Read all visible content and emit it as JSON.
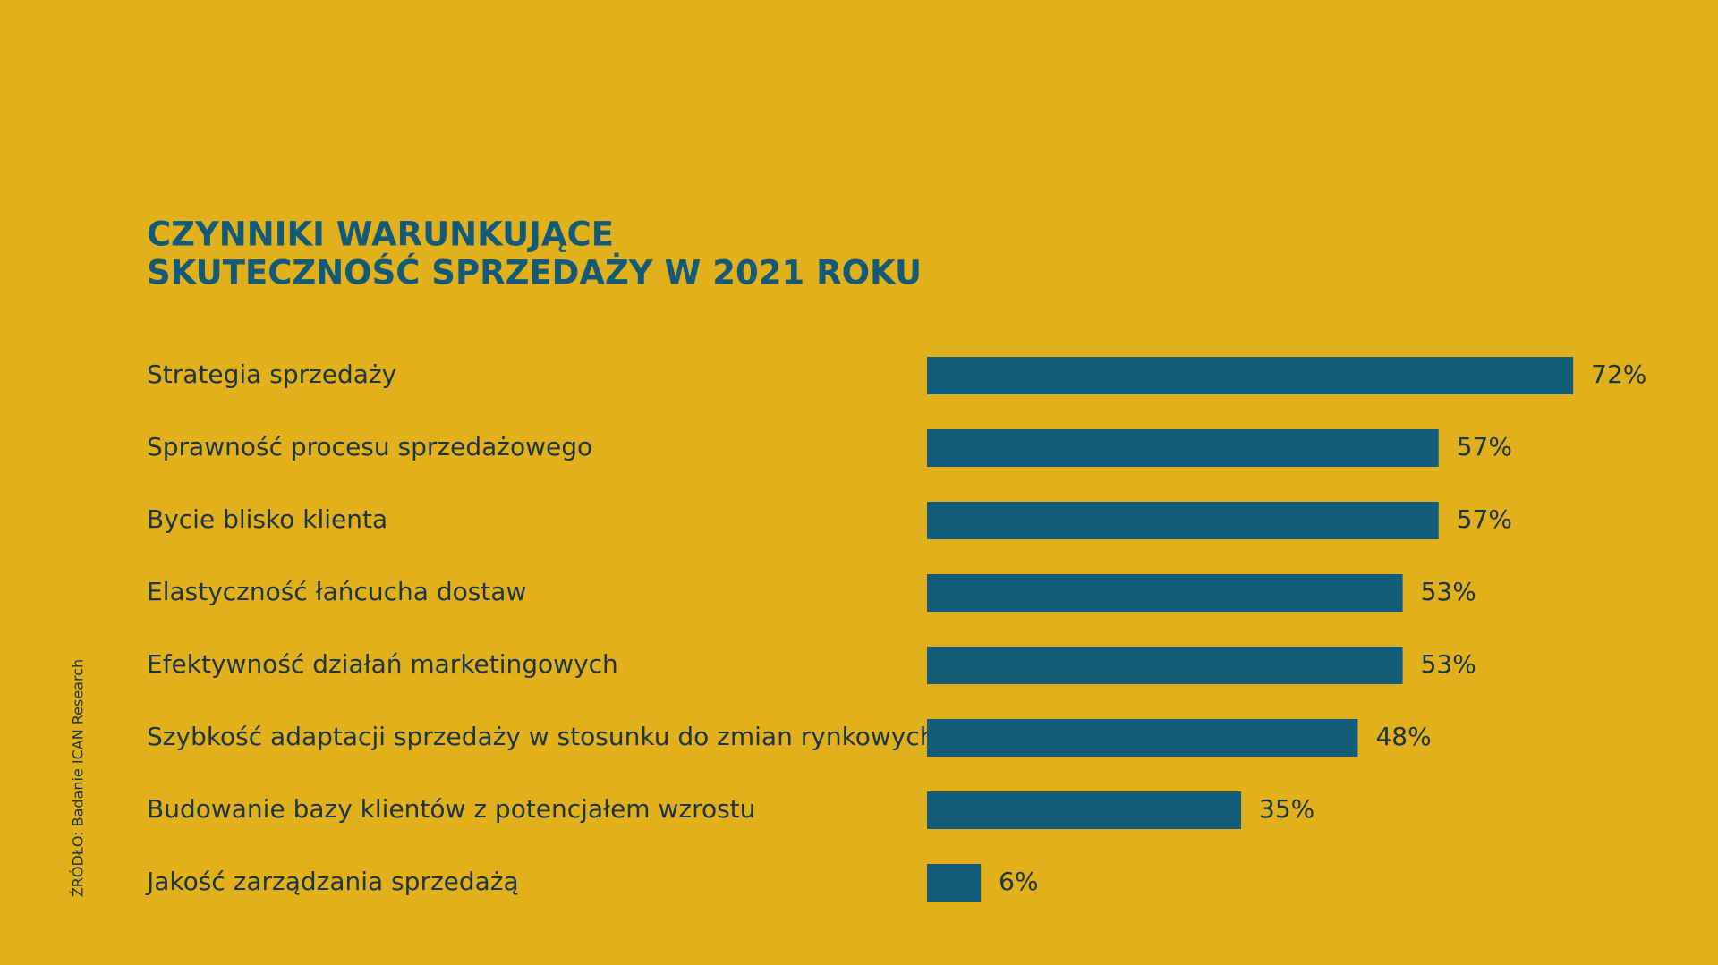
{
  "chart_data": {
    "type": "bar",
    "orientation": "horizontal",
    "title": [
      "CZYNNIKI WARUNKUJĄCE",
      "SKUTECZNOŚĆ SPRZEDAŻY W 2021 ROKU"
    ],
    "source": "ŹRÓDŁO: Badanie ICAN Research",
    "categories": [
      "Strategia sprzedaży",
      "Sprawność procesu sprzedażowego",
      "Bycie blisko klienta",
      "Elastyczność łańcucha dostaw",
      "Efektywność działań marketingowych",
      "Szybkość adaptacji sprzedaży w stosunku do zmian rynkowych",
      "Budowanie bazy klientów z potencjałem wzrostu",
      "Jakość zarządzania sprzedażą"
    ],
    "values": [
      72,
      57,
      57,
      53,
      53,
      48,
      35,
      6
    ],
    "value_labels": [
      "72%",
      "57%",
      "57%",
      "53%",
      "53%",
      "48%",
      "35%",
      "6%"
    ],
    "color": "#135d7a"
  }
}
